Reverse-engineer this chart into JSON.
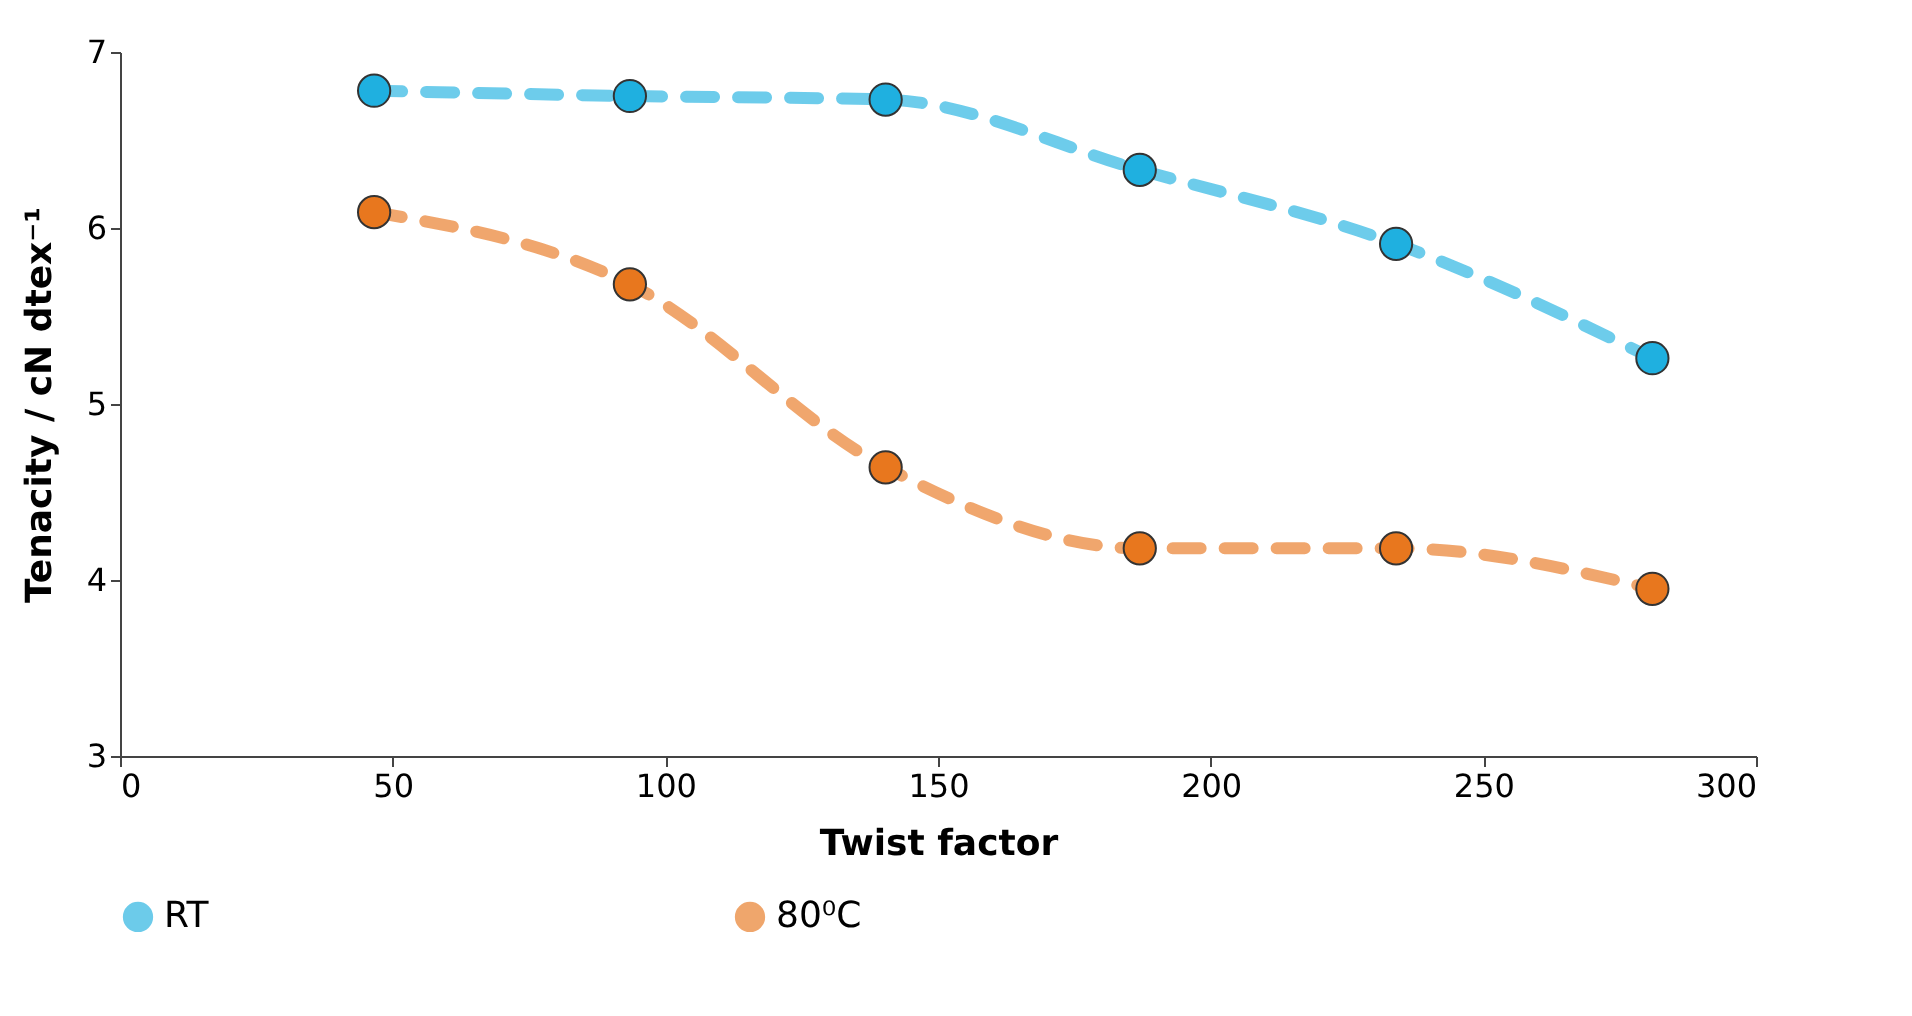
{
  "chart_data": {
    "type": "line",
    "xlabel": "Twist factor",
    "ylabel": "Tenacity / cN dtex⁻¹",
    "x": [
      46.6,
      93.5,
      140.4,
      187,
      234,
      281
    ],
    "series": [
      {
        "name": "RT",
        "color": "#1fb0e0",
        "values": [
          6.78,
          6.75,
          6.73,
          6.33,
          5.91,
          5.26
        ]
      },
      {
        "name": "80⁰C",
        "color": "#e8771e",
        "values": [
          6.09,
          5.68,
          4.64,
          4.18,
          4.18,
          3.95
        ]
      }
    ],
    "xlim": [
      0,
      300
    ],
    "xticks": [
      0,
      50,
      100,
      150,
      200,
      250,
      300
    ],
    "ylim": [
      3,
      7
    ],
    "yticks": [
      3,
      4,
      5,
      6,
      7
    ],
    "grid": false,
    "legend": "bottom",
    "marker": "circle",
    "line_style": "dashed"
  }
}
